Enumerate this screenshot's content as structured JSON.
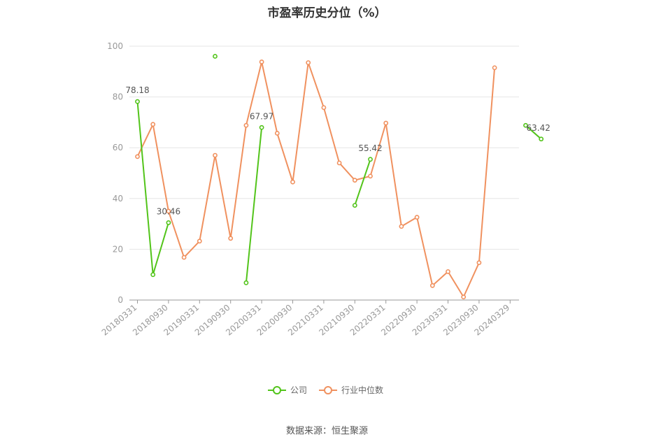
{
  "title": "市盈率历史分位（%）",
  "source": "数据来源：恒生聚源",
  "chart_data": {
    "type": "line",
    "title": "市盈率历史分位（%）",
    "ylim": [
      0,
      100
    ],
    "yticks": [
      "0",
      "20",
      "40",
      "60",
      "80",
      "100"
    ],
    "x_tick_labels": [
      "20180331",
      "20180930",
      "20190331",
      "20190930",
      "20200331",
      "20200930",
      "20210331",
      "20210930",
      "20220331",
      "20220930",
      "20230331",
      "20230930",
      "20240329"
    ],
    "grid": "horizontal",
    "legend_position": "bottom",
    "series": [
      {
        "name": "公司",
        "color": "#52c41a",
        "values": [
          78.18,
          10.0,
          30.46,
          null,
          null,
          96.0,
          null,
          6.8,
          67.97,
          null,
          null,
          null,
          null,
          null,
          37.3,
          55.42,
          null,
          null,
          null,
          null,
          null,
          null,
          null,
          null,
          null,
          68.8,
          63.42
        ]
      },
      {
        "name": "行业中位数",
        "color": "#f0915f",
        "values": [
          56.5,
          69.2,
          35.0,
          16.8,
          23.2,
          57.0,
          24.3,
          68.8,
          93.8,
          65.7,
          46.5,
          93.5,
          75.8,
          54.0,
          47.2,
          48.8,
          69.7,
          29.0,
          32.6,
          5.7,
          11.2,
          1.2,
          14.7,
          91.5
        ]
      }
    ],
    "data_labels": [
      {
        "series": 0,
        "index": 0,
        "text": "78.18"
      },
      {
        "series": 0,
        "index": 2,
        "text": "30.46"
      },
      {
        "series": 0,
        "index": 8,
        "text": "67.97"
      },
      {
        "series": 0,
        "index": 15,
        "text": "55.42"
      },
      {
        "series": 0,
        "index": 26,
        "text": "63.42"
      }
    ]
  }
}
